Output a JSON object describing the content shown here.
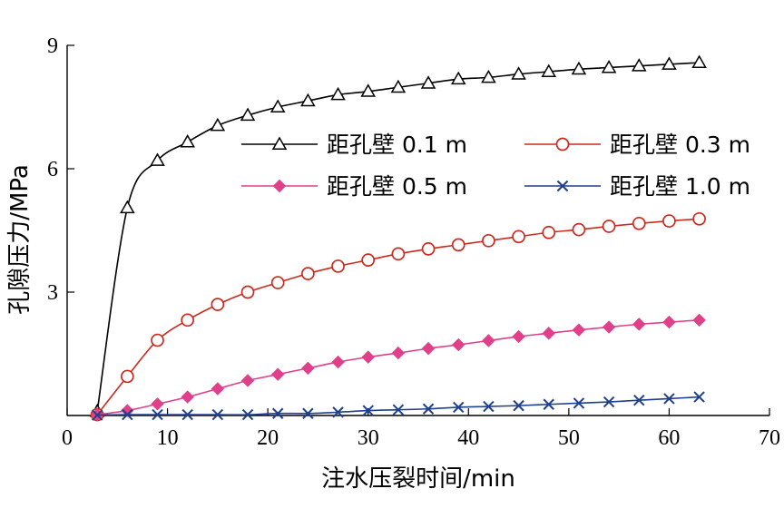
{
  "chart_data": {
    "type": "line",
    "title": "",
    "xlabel": "注水压裂时间/min",
    "ylabel": "孔隙压力/MPa",
    "xlim": [
      0,
      70
    ],
    "ylim": [
      0,
      9
    ],
    "xticks": [
      0,
      10,
      20,
      30,
      40,
      50,
      60,
      70
    ],
    "yticks": [
      3,
      6,
      9
    ],
    "grid": false,
    "legend_position": "center-right",
    "series": [
      {
        "name": "距孔壁 0.1 m",
        "color": "#000000",
        "marker": "triangle-open",
        "x": [
          3,
          6,
          9,
          12,
          15,
          18,
          21,
          24,
          27,
          30,
          33,
          36,
          39,
          42,
          45,
          48,
          51,
          54,
          57,
          60,
          63
        ],
        "y": [
          0.1,
          5.05,
          6.2,
          6.65,
          7.05,
          7.3,
          7.5,
          7.65,
          7.8,
          7.88,
          7.98,
          8.08,
          8.18,
          8.22,
          8.3,
          8.36,
          8.42,
          8.46,
          8.5,
          8.54,
          8.58
        ]
      },
      {
        "name": "距孔壁 0.3 m",
        "color": "#cc2a1e",
        "marker": "circle-open",
        "x": [
          3,
          6,
          9,
          12,
          15,
          18,
          21,
          24,
          27,
          30,
          33,
          36,
          39,
          42,
          45,
          48,
          51,
          54,
          57,
          60,
          63
        ],
        "y": [
          0.02,
          0.95,
          1.83,
          2.32,
          2.7,
          3.0,
          3.23,
          3.45,
          3.63,
          3.78,
          3.93,
          4.05,
          4.15,
          4.25,
          4.35,
          4.45,
          4.52,
          4.6,
          4.67,
          4.73,
          4.78
        ]
      },
      {
        "name": "距孔壁 0.5 m",
        "color": "#e0408a",
        "marker": "diamond-filled",
        "x": [
          3,
          6,
          9,
          12,
          15,
          18,
          21,
          24,
          27,
          30,
          33,
          36,
          39,
          42,
          45,
          48,
          51,
          54,
          57,
          60,
          63
        ],
        "y": [
          0.02,
          0.12,
          0.28,
          0.45,
          0.65,
          0.85,
          1.0,
          1.15,
          1.3,
          1.42,
          1.52,
          1.63,
          1.72,
          1.82,
          1.92,
          2.0,
          2.08,
          2.15,
          2.22,
          2.27,
          2.32
        ]
      },
      {
        "name": "距孔壁 1.0 m",
        "color": "#1f3f8f",
        "marker": "x",
        "x": [
          3,
          6,
          9,
          12,
          15,
          18,
          21,
          24,
          27,
          30,
          33,
          36,
          39,
          42,
          45,
          48,
          51,
          54,
          57,
          60,
          63
        ],
        "y": [
          0.01,
          0.02,
          0.02,
          0.02,
          0.02,
          0.02,
          0.05,
          0.05,
          0.08,
          0.12,
          0.14,
          0.16,
          0.2,
          0.22,
          0.24,
          0.27,
          0.3,
          0.33,
          0.37,
          0.41,
          0.45
        ]
      }
    ]
  }
}
